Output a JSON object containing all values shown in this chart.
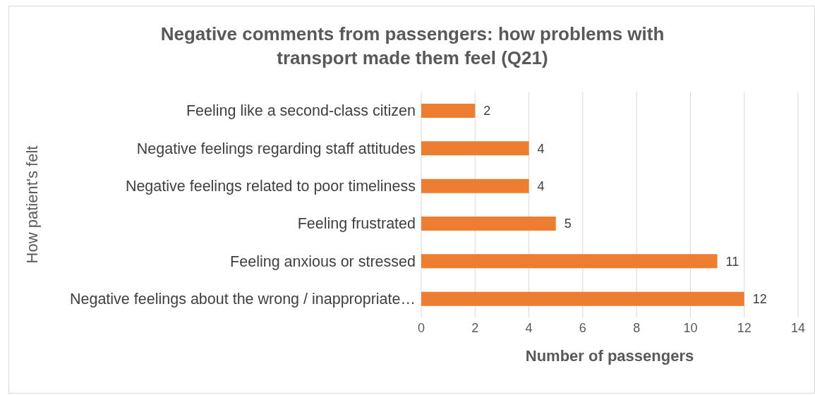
{
  "chart_data": {
    "type": "bar",
    "orientation": "horizontal",
    "title": "Negative comments from passengers: how problems with transport made them feel (Q21)",
    "xlabel": "Number of passengers",
    "ylabel": "How patient's felt",
    "categories": [
      "Feeling like a second-class citizen",
      "Negative feelings regarding staff attitudes",
      "Negative feelings related to poor timeliness",
      "Feeling frustrated",
      "Feeling anxious or stressed",
      "Negative feelings about the wrong / inappropriate…"
    ],
    "values": [
      2,
      4,
      4,
      5,
      11,
      12
    ],
    "color": "#ed7d31",
    "xlim": [
      0,
      14
    ],
    "xticks": [
      0,
      2,
      4,
      6,
      8,
      10,
      12,
      14
    ],
    "grid": "x",
    "data_labels": true,
    "legend": false
  }
}
